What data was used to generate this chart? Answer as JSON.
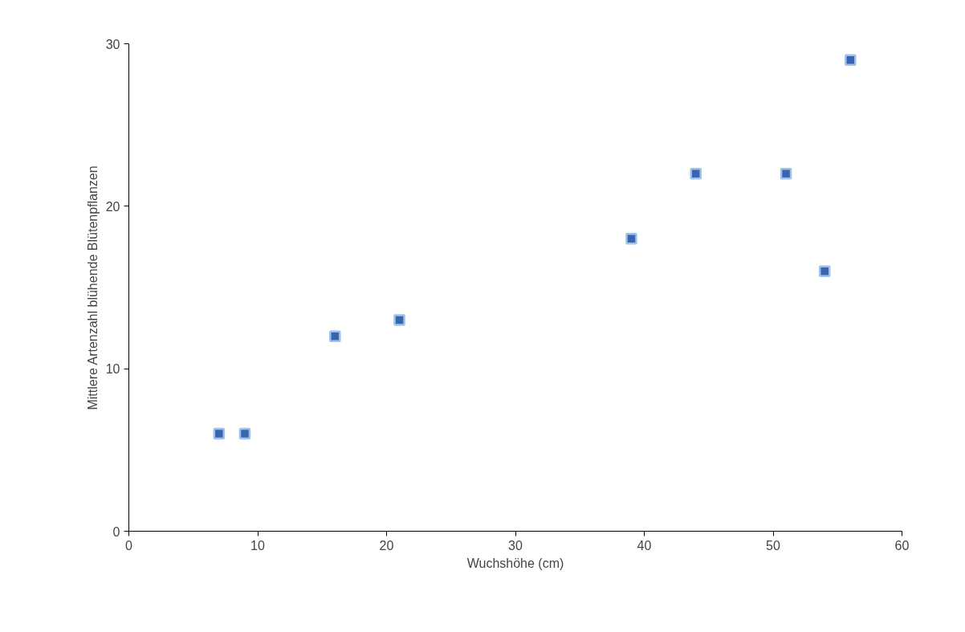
{
  "chart_data": {
    "type": "scatter",
    "xlabel": "Wuchshöhe (cm)",
    "ylabel": "Mittlere Artenzahl blühende Blütenpflanzen",
    "x": [
      7,
      9,
      16,
      21,
      39,
      44,
      51,
      54,
      56
    ],
    "series": [
      {
        "color": "#3a64b0",
        "values": [
          6,
          6,
          12,
          13,
          18,
          22,
          22,
          16,
          29
        ]
      }
    ],
    "xlim": [
      0,
      60
    ],
    "xticks": [
      0,
      10,
      20,
      30,
      40,
      50,
      60
    ],
    "ylim": [
      0,
      30
    ],
    "yticks": [
      0,
      10,
      20,
      30
    ],
    "grid": false,
    "marker": "square"
  }
}
